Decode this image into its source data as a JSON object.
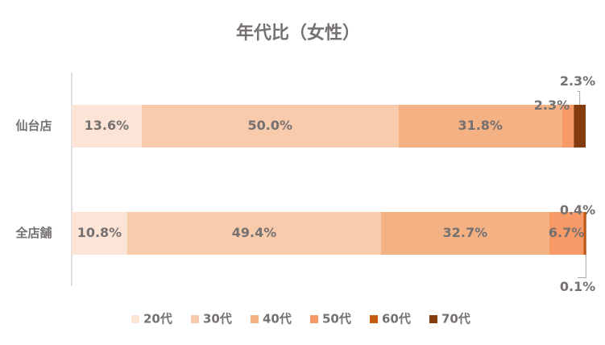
{
  "chart_data": {
    "type": "stacked-bar-horizontal",
    "title": "年代比（女性）",
    "categories": [
      "仙台店",
      "全店舗"
    ],
    "xlim": [
      0,
      100
    ],
    "legend": "bottom",
    "series": [
      {
        "name": "20代",
        "color": "#fce4d6",
        "values": [
          13.6,
          10.8
        ],
        "value_labels": [
          "13.6%",
          "10.8%"
        ]
      },
      {
        "name": "30代",
        "color": "#f8cbad",
        "values": [
          50.0,
          49.4
        ],
        "value_labels": [
          "50.0%",
          "49.4%"
        ]
      },
      {
        "name": "40代",
        "color": "#f4b183",
        "values": [
          31.8,
          32.7
        ],
        "value_labels": [
          "31.8%",
          "32.7%"
        ]
      },
      {
        "name": "50代",
        "color": "#f79a68",
        "values": [
          2.3,
          6.7
        ],
        "value_labels": [
          "2.3%",
          "6.7%"
        ]
      },
      {
        "name": "60代",
        "color": "#c55a11",
        "values": [
          0,
          0.4
        ],
        "value_labels": [
          null,
          "0.4%"
        ]
      },
      {
        "name": "70代",
        "color": "#843c0c",
        "values": [
          2.3,
          0.1
        ],
        "value_labels": [
          "2.3%",
          "0.1%"
        ]
      }
    ]
  }
}
